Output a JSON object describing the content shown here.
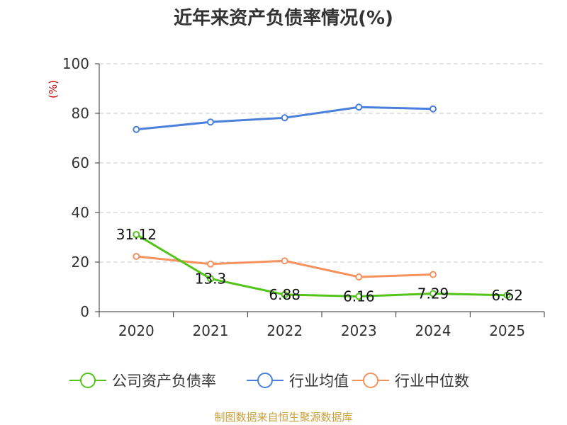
{
  "chart_data": {
    "type": "line",
    "title": "近年来资产负债率情况(%)",
    "ylabel": "(%)",
    "xlabel": "",
    "categories": [
      "2020",
      "2021",
      "2022",
      "2023",
      "2024",
      "2025"
    ],
    "ylim": [
      0,
      100
    ],
    "yticks": [
      "0",
      "20",
      "40",
      "60",
      "80",
      "100"
    ],
    "grid": true,
    "legend_position": "bottom",
    "series": [
      {
        "name": "公司资产负债率",
        "color": "#52c41a",
        "values": [
          31.12,
          13.3,
          6.88,
          6.16,
          7.29,
          6.62
        ],
        "labels": [
          "31.12",
          "13.3",
          "6.88",
          "6.16",
          "7.29",
          "6.62"
        ]
      },
      {
        "name": "行业均值",
        "color": "#4a7fdc",
        "values": [
          73.5,
          76.5,
          78.2,
          82.5,
          81.8,
          null
        ]
      },
      {
        "name": "行业中位数",
        "color": "#f5925e",
        "values": [
          22.3,
          19.2,
          20.5,
          14.0,
          15.0,
          null
        ]
      }
    ]
  },
  "source": "制图数据来自恒生聚源数据库"
}
